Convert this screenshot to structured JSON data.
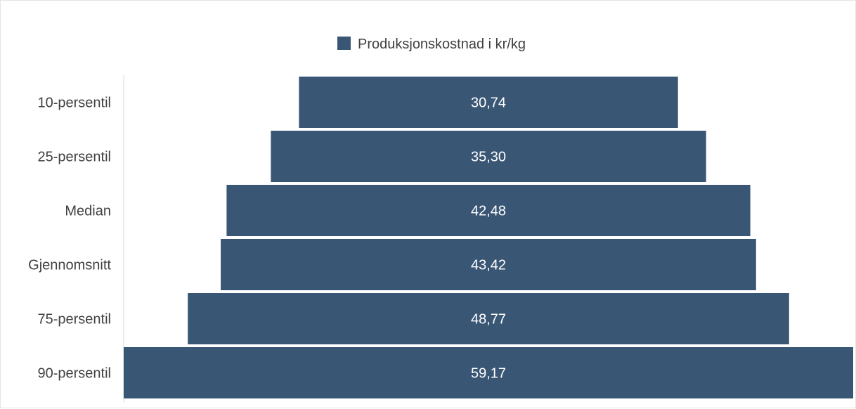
{
  "chart_data": {
    "type": "bar",
    "orientation": "horizontal-centered",
    "categories": [
      "10-persentil",
      "25-persentil",
      "Median",
      "Gjennomsnitt",
      "75-persentil",
      "90-persentil"
    ],
    "series": [
      {
        "name": "Produksjonskostnad i kr/kg",
        "values": [
          30.74,
          35.3,
          42.48,
          43.42,
          48.77,
          59.17
        ],
        "labels": [
          "30,74",
          "35,30",
          "42,48",
          "43,42",
          "48,77",
          "59,17"
        ]
      }
    ],
    "legend_position": "top-center",
    "grid": false,
    "colors": {
      "bar": "#3a5675"
    }
  }
}
